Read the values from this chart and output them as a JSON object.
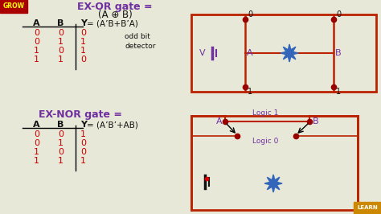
{
  "bg_color": "#e8e8d8",
  "title_color": "#7030a0",
  "grow_bg": "#aa0000",
  "grow_text": "#ffff00",
  "learn_bg": "#cc8800",
  "learn_text": "#ffffff",
  "red_wire": "#bb2200",
  "dark_red_dot": "#990000",
  "blue_star": "#3366bb",
  "purple_text": "#7030a0",
  "black_text": "#111111",
  "red_text": "#cc0000",
  "exor_title": "EX-OR gate =",
  "exnor_title": "EX-NOR gate =",
  "exor_subtitle": "(A ⊕ B)",
  "exor_eq": "= (A’B+B’A)",
  "exnor_eq": "= (A’B’+AB)",
  "odd_bit": "odd bit\ndetector",
  "logic1": "Logic 1",
  "logic0": "Logic 0",
  "col_A": "A",
  "col_B": "B",
  "col_Y": "Y",
  "exor_rows": [
    [
      0,
      0,
      0
    ],
    [
      0,
      1,
      1
    ],
    [
      1,
      0,
      1
    ],
    [
      1,
      1,
      0
    ]
  ],
  "exnor_rows": [
    [
      0,
      0,
      1
    ],
    [
      0,
      1,
      0
    ],
    [
      1,
      0,
      0
    ],
    [
      1,
      1,
      1
    ]
  ],
  "V_label": "V",
  "A_label": "A",
  "B_label": "B"
}
